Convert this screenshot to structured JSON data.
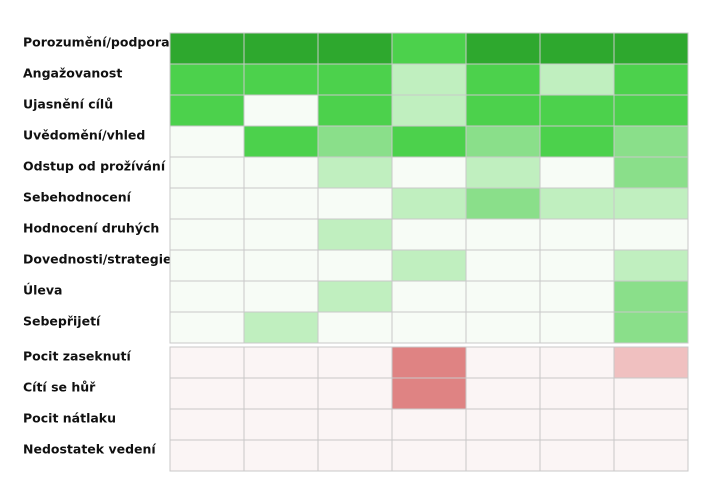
{
  "chart_data": {
    "type": "heatmap",
    "title": "",
    "xlabel": "",
    "ylabel": "",
    "legend": "none",
    "grid": true,
    "column_count": 7,
    "colors": {
      "positive_levels": [
        "#f7fcf6",
        "#c0efbf",
        "#8adf8a",
        "#4cd14c",
        "#2ea82e"
      ],
      "negative_levels": [
        "#fbf5f5",
        "#f0c0c0",
        "#df8383"
      ],
      "cell_border": "#c8c8c8",
      "label_text": "#111111"
    },
    "groups": [
      {
        "name": "positive",
        "rows": [
          {
            "label": "Porozumění/podpora",
            "values": [
              4,
              4,
              4,
              3,
              4,
              4,
              4
            ]
          },
          {
            "label": "Angažovanost",
            "values": [
              3,
              3,
              3,
              1,
              3,
              1,
              3
            ]
          },
          {
            "label": "Ujasnění cílů",
            "values": [
              3,
              0,
              3,
              1,
              3,
              3,
              3
            ]
          },
          {
            "label": "Uvědomění/vhled",
            "values": [
              0,
              3,
              2,
              3,
              2,
              3,
              2
            ]
          },
          {
            "label": "Odstup od prožívání",
            "values": [
              0,
              0,
              1,
              0,
              1,
              0,
              2
            ]
          },
          {
            "label": "Sebehodnocení",
            "values": [
              0,
              0,
              0,
              1,
              2,
              1,
              1
            ]
          },
          {
            "label": "Hodnocení druhých",
            "values": [
              0,
              0,
              1,
              0,
              0,
              0,
              0
            ]
          },
          {
            "label": "Dovednosti/strategie",
            "values": [
              0,
              0,
              0,
              1,
              0,
              0,
              1
            ]
          },
          {
            "label": "Úleva",
            "values": [
              0,
              0,
              1,
              0,
              0,
              0,
              2
            ]
          },
          {
            "label": "Sebepřijetí",
            "values": [
              0,
              1,
              0,
              0,
              0,
              0,
              2
            ]
          }
        ]
      },
      {
        "name": "negative",
        "rows": [
          {
            "label": "Pocit zaseknutí",
            "values": [
              0,
              0,
              0,
              2,
              0,
              0,
              1
            ]
          },
          {
            "label": "Cítí se hůř",
            "values": [
              0,
              0,
              0,
              2,
              0,
              0,
              0
            ]
          },
          {
            "label": "Pocit nátlaku",
            "values": [
              0,
              0,
              0,
              0,
              0,
              0,
              0
            ]
          },
          {
            "label": "Nedostatek vedení",
            "values": [
              0,
              0,
              0,
              0,
              0,
              0,
              0
            ]
          }
        ]
      }
    ]
  }
}
